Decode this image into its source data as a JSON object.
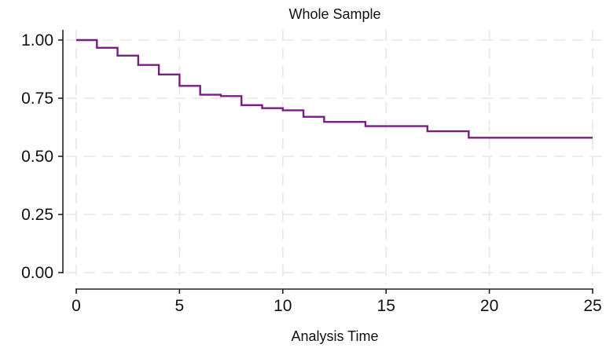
{
  "chart_data": {
    "type": "line",
    "title": "Whole Sample",
    "xlabel": "Analysis Time",
    "ylabel": "",
    "xlim": [
      0,
      25
    ],
    "ylim": [
      0,
      1
    ],
    "xticks": [
      0,
      5,
      10,
      15,
      20,
      25
    ],
    "xtick_labels": [
      "0",
      "5",
      "10",
      "15",
      "20",
      "25"
    ],
    "yticks": [
      0,
      0.25,
      0.5,
      0.75,
      1
    ],
    "ytick_labels": [
      "0.00",
      "0.25",
      "0.50",
      "0.75",
      "1.00"
    ],
    "grid": true,
    "step": true,
    "series": [
      {
        "color": "#7b1c86",
        "x": [
          0,
          1,
          2,
          3,
          4,
          5,
          6,
          7,
          8,
          9,
          10,
          11,
          12,
          14,
          17,
          19,
          25
        ],
        "y": [
          1.0,
          0.967,
          0.933,
          0.893,
          0.852,
          0.803,
          0.765,
          0.759,
          0.72,
          0.707,
          0.698,
          0.67,
          0.648,
          0.63,
          0.608,
          0.58,
          0.58
        ]
      }
    ]
  }
}
